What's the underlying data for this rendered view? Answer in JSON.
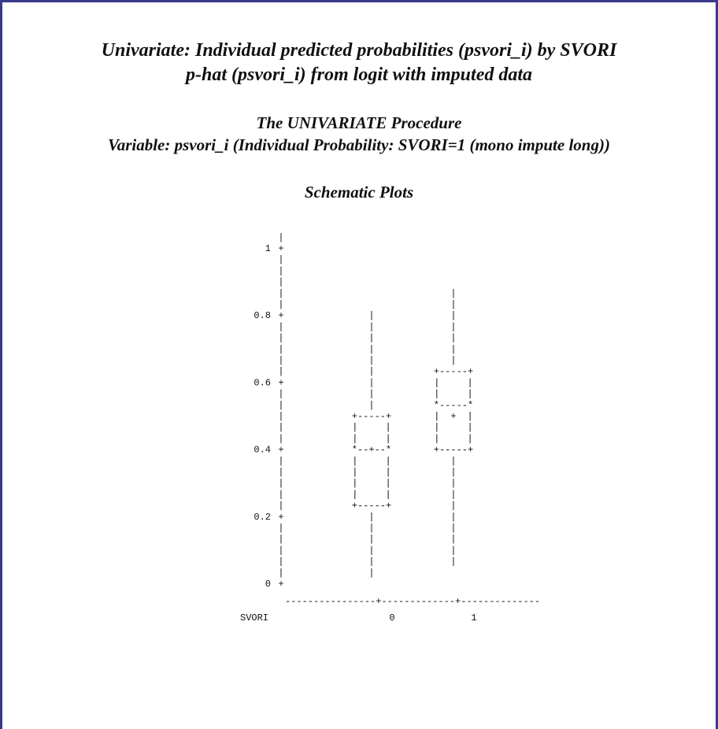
{
  "colors": {
    "frame": "#3a3a8c",
    "text": "#111111"
  },
  "header": {
    "title_line1": "Univariate: Individual predicted probabilities (psvori_i) by SVORI",
    "title_line2": "p-hat (psvori_i) from logit with imputed data",
    "procedure": "The UNIVARIATE Procedure",
    "variable": "Variable:  psvori_i  (Individual Probability: SVORI=1 (mono impute long))",
    "section": "Schematic Plots"
  },
  "chart_data": {
    "type": "boxplot",
    "xlabel": "SVORI",
    "categories": [
      "0",
      "1"
    ],
    "y_ticks": [
      "0",
      "0.2",
      "0.4",
      "0.6",
      "0.8",
      "1"
    ],
    "ylim": [
      0,
      1
    ],
    "grid": false,
    "series": [
      {
        "category": "0",
        "whisker_low": 0.03,
        "q1": 0.25,
        "median": 0.4,
        "mean": 0.4,
        "q3": 0.5,
        "whisker_high": 0.81
      },
      {
        "category": "1",
        "whisker_low": 0.08,
        "q1": 0.4,
        "median": 0.55,
        "mean": 0.5,
        "q3": 0.65,
        "whisker_high": 0.86
      }
    ]
  }
}
